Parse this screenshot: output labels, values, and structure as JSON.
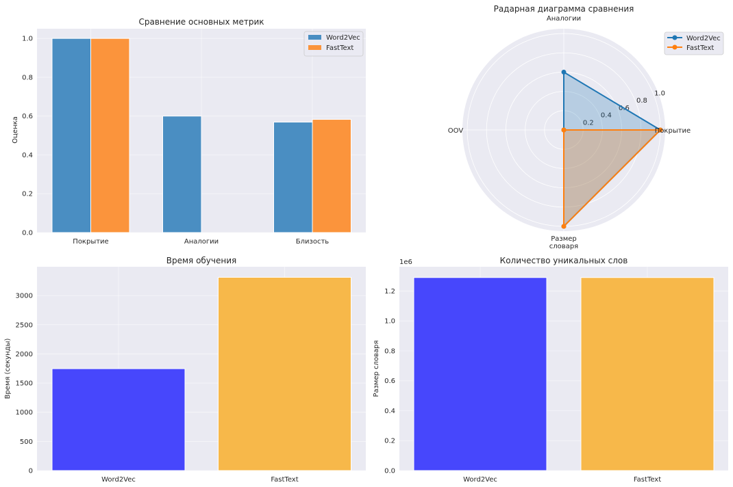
{
  "chart_data": [
    {
      "type": "bar",
      "title": "Сравнение основных метрик",
      "xlabel": "",
      "ylabel": "Оценка",
      "categories": [
        "Покрытие",
        "Аналогии",
        "Близость"
      ],
      "series": [
        {
          "name": "Word2Vec",
          "values": [
            1.0,
            0.6,
            0.569
          ],
          "color": "#4a8ec2"
        },
        {
          "name": "FastText",
          "values": [
            1.0,
            0.0,
            0.583
          ],
          "color": "#fb943c"
        }
      ],
      "ylim": [
        0,
        1.05
      ],
      "yticks": [
        0.0,
        0.2,
        0.4,
        0.6,
        0.8,
        1.0
      ],
      "ytick_labels": [
        "0.0",
        "0.2",
        "0.4",
        "0.6",
        "0.8",
        "1.0"
      ],
      "grid": true,
      "legend": "top-right"
    },
    {
      "type": "radar",
      "title": "Радарная диаграмма сравнения",
      "axes": [
        "Покрытие",
        "Аналогии",
        "OOV",
        "Размер\nсловаря"
      ],
      "series": [
        {
          "name": "Word2Vec",
          "values": [
            1.0,
            0.6,
            0.0,
            1.0
          ],
          "color": "#1f77b4"
        },
        {
          "name": "FastText",
          "values": [
            1.0,
            0.0,
            0.0,
            1.0
          ],
          "color": "#ff7f0e"
        }
      ],
      "rlim": [
        0,
        1.05
      ],
      "rticks": [
        0.2,
        0.4,
        0.6,
        0.8,
        1.0
      ],
      "rtick_labels": [
        "0.2",
        "0.4",
        "0.6",
        "0.8",
        "1.0"
      ],
      "grid": true,
      "legend": "top-right"
    },
    {
      "type": "bar",
      "title": "Время обучения",
      "xlabel": "",
      "ylabel": "Время (секунды)",
      "categories": [
        "Word2Vec",
        "FastText"
      ],
      "values": [
        1747,
        3313
      ],
      "colors": [
        "#4747fc",
        "#f7b84a"
      ],
      "ylim": [
        0,
        3494
      ],
      "yticks": [
        0,
        500,
        1000,
        1500,
        2000,
        2500,
        3000
      ],
      "ytick_labels": [
        "0",
        "500",
        "1000",
        "1500",
        "2000",
        "2500",
        "3000"
      ],
      "grid": true
    },
    {
      "type": "bar",
      "title": "Количество уникальных слов",
      "xlabel": "",
      "ylabel": "Размер словаря",
      "categories": [
        "Word2Vec",
        "FastText"
      ],
      "values": [
        1290000,
        1290000
      ],
      "colors": [
        "#4747fc",
        "#f7b84a"
      ],
      "ylim": [
        0,
        1362000
      ],
      "yticks": [
        0,
        200000,
        400000,
        600000,
        800000,
        1000000,
        1200000
      ],
      "ytick_labels": [
        "0.0",
        "0.2",
        "0.4",
        "0.6",
        "0.8",
        "1.0",
        "1.2"
      ],
      "offset_text": "1e6",
      "grid": true
    }
  ]
}
